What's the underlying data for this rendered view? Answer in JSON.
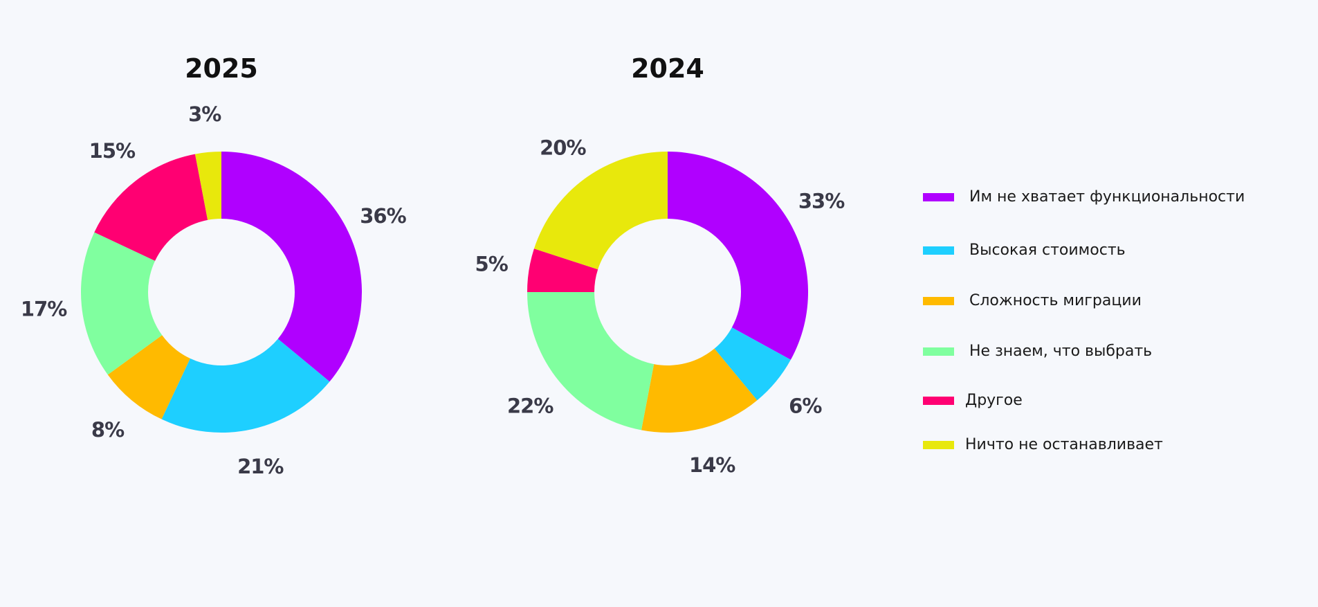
{
  "chart_data": [
    {
      "type": "pie",
      "donut": true,
      "title": "2025",
      "categories": [
        "Им не хватает функциональности",
        "Высокая стоимость",
        "Сложность миграции",
        "Не знаем, что выбрать",
        "Другое",
        "Ничто не останавливает"
      ],
      "values": [
        36,
        21,
        8,
        17,
        15,
        3
      ],
      "labels": [
        "36%",
        "21%",
        "8%",
        "17%",
        "15%",
        "3%"
      ]
    },
    {
      "type": "pie",
      "donut": true,
      "title": "2024",
      "categories": [
        "Им не хватает функциональности",
        "Высокая стоимость",
        "Сложность миграции",
        "Не знаем, что выбрать",
        "Другое",
        "Ничто не останавливает"
      ],
      "values": [
        33,
        6,
        14,
        22,
        5,
        20
      ],
      "labels": [
        "33%",
        "6%",
        "14%",
        "22%",
        "5%",
        "20%"
      ]
    }
  ],
  "legend": {
    "placement": "right",
    "items": [
      {
        "label": "Им не хватает функциональности",
        "color": "#b000ff"
      },
      {
        "label": "Высокая стоимость",
        "color": "#1ecfff"
      },
      {
        "label": "Сложность миграции",
        "color": "#ffba00"
      },
      {
        "label": "Не знаем, что выбрать",
        "color": "#80ff9f"
      },
      {
        "label": "Другое",
        "color": "#ff0072"
      },
      {
        "label": "Ничто не останавливает",
        "color": "#e8e80c"
      }
    ]
  }
}
